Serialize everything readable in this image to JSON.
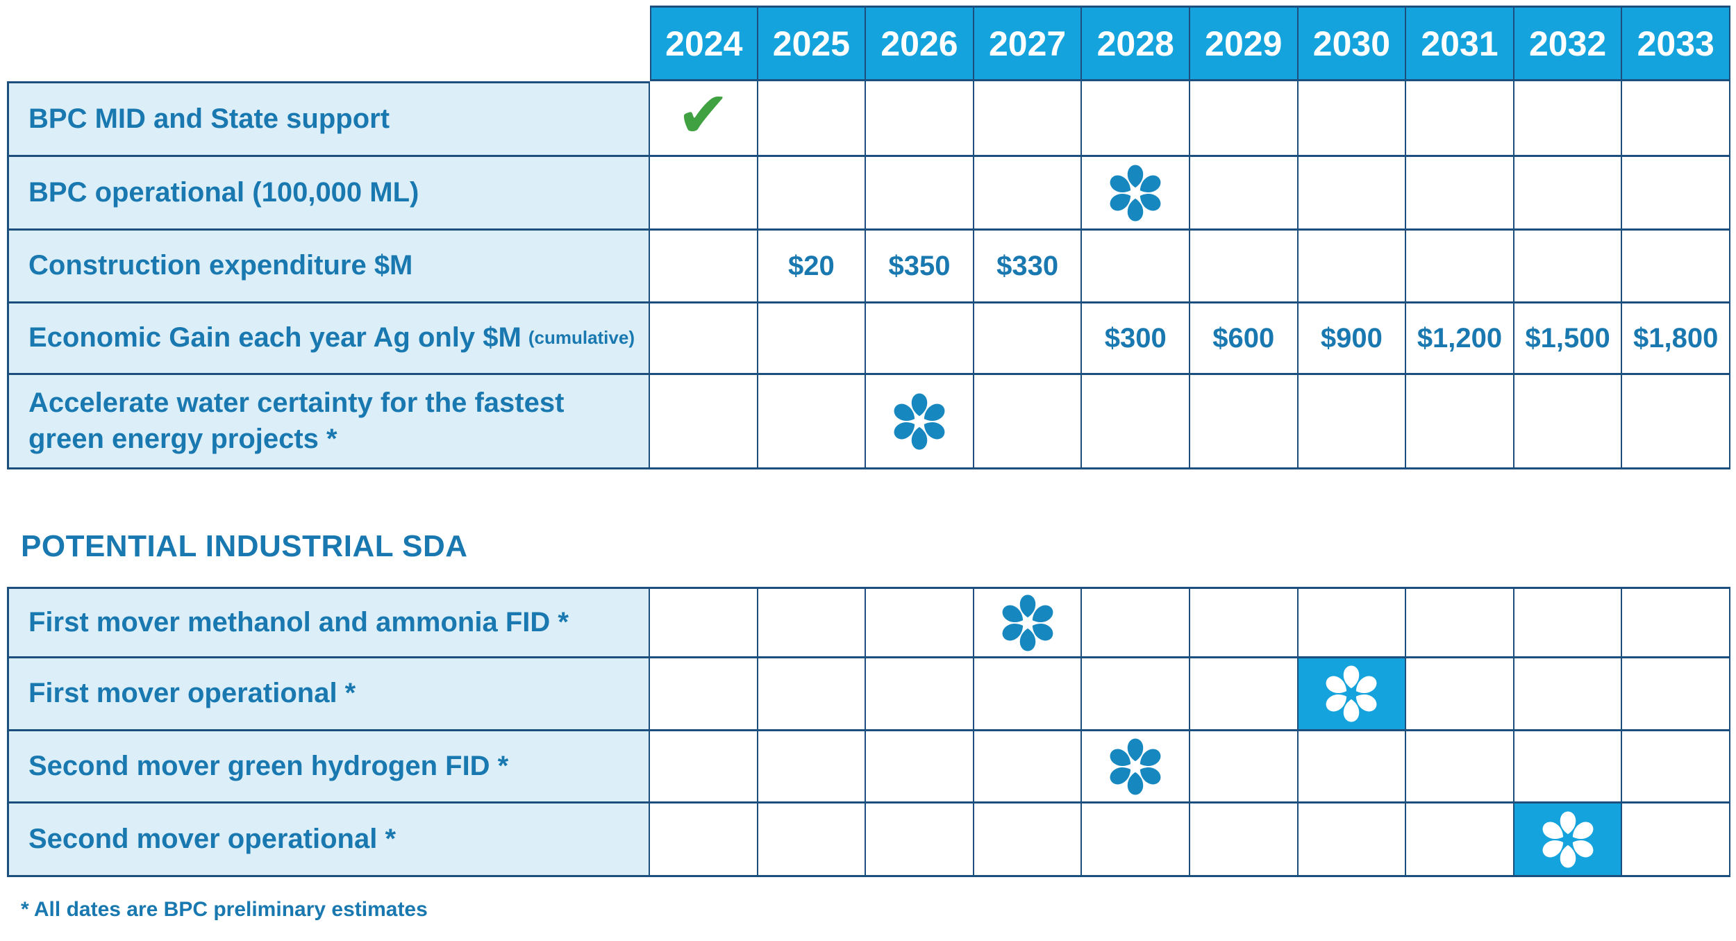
{
  "years": [
    "2024",
    "2025",
    "2026",
    "2027",
    "2028",
    "2029",
    "2030",
    "2031",
    "2032",
    "2033"
  ],
  "colors": {
    "header_blue": "#14a3dc",
    "flower_blue": "#1787bf",
    "label_background": "#dceff9",
    "text_blue": "#1878af",
    "grid_line": "#1c4f7e",
    "check_green": "#3fa141",
    "highlight_cell_blue": "#14a3dc"
  },
  "icons": {
    "check_glyph": "✔",
    "check_name": "green-check-icon",
    "flower_name": "asterisk-flower-icon"
  },
  "upper_table": {
    "rows": [
      {
        "label": "BPC MID and State support",
        "cells": [
          {
            "year": "2024",
            "type": "check"
          }
        ]
      },
      {
        "label": "BPC operational (100,000 ML)",
        "cells": [
          {
            "year": "2028",
            "type": "flower"
          }
        ]
      },
      {
        "label": "Construction expenditure $M",
        "cells": [
          {
            "year": "2025",
            "type": "value",
            "text": "$20"
          },
          {
            "year": "2026",
            "type": "value",
            "text": "$350"
          },
          {
            "year": "2027",
            "type": "value",
            "text": "$330"
          }
        ]
      },
      {
        "label": "Economic Gain each year Ag only $M",
        "label_note": "(cumulative)",
        "cells": [
          {
            "year": "2028",
            "type": "value",
            "text": "$300"
          },
          {
            "year": "2029",
            "type": "value",
            "text": "$600"
          },
          {
            "year": "2030",
            "type": "value",
            "text": "$900"
          },
          {
            "year": "2031",
            "type": "value",
            "text": "$1,200"
          },
          {
            "year": "2032",
            "type": "value",
            "text": "$1,500"
          },
          {
            "year": "2033",
            "type": "value",
            "text": "$1,800"
          }
        ]
      },
      {
        "label": "Accelerate water certainty for the fastest green energy projects *",
        "cells": [
          {
            "year": "2026",
            "type": "flower"
          }
        ]
      }
    ]
  },
  "section_heading": "POTENTIAL INDUSTRIAL SDA",
  "lower_table": {
    "rows": [
      {
        "label": "First mover methanol and ammonia FID *",
        "cells": [
          {
            "year": "2027",
            "type": "flower"
          }
        ]
      },
      {
        "label": "First mover operational *",
        "cells": [
          {
            "year": "2030",
            "type": "flower-filled"
          }
        ]
      },
      {
        "label": "Second mover green hydrogen FID *",
        "cells": [
          {
            "year": "2028",
            "type": "flower"
          }
        ]
      },
      {
        "label": "Second mover operational *",
        "cells": [
          {
            "year": "2032",
            "type": "flower-filled"
          }
        ]
      }
    ]
  },
  "footnote": "* All dates are BPC preliminary estimates",
  "chart_data": {
    "type": "table",
    "columns": [
      "Milestone",
      "2024",
      "2025",
      "2026",
      "2027",
      "2028",
      "2029",
      "2030",
      "2031",
      "2032",
      "2033"
    ],
    "sections": [
      {
        "name": "",
        "rows": [
          {
            "label": "BPC MID and State support",
            "values": {
              "2024": "complete (green check)"
            }
          },
          {
            "label": "BPC operational (100,000 ML)",
            "values": {
              "2028": "milestone"
            }
          },
          {
            "label": "Construction expenditure $M",
            "units": "$M",
            "values": {
              "2025": 20,
              "2026": 350,
              "2027": 330
            }
          },
          {
            "label": "Economic Gain each year Ag only $M (cumulative)",
            "units": "$M",
            "values": {
              "2028": 300,
              "2029": 600,
              "2030": 900,
              "2031": 1200,
              "2032": 1500,
              "2033": 1800
            }
          },
          {
            "label": "Accelerate water certainty for the fastest green energy projects *",
            "values": {
              "2026": "milestone"
            }
          }
        ]
      },
      {
        "name": "POTENTIAL INDUSTRIAL SDA",
        "rows": [
          {
            "label": "First mover methanol and ammonia FID *",
            "values": {
              "2027": "milestone"
            }
          },
          {
            "label": "First mover operational *",
            "values": {
              "2030": "milestone (highlighted blue cell)"
            }
          },
          {
            "label": "Second mover green hydrogen FID *",
            "values": {
              "2028": "milestone"
            }
          },
          {
            "label": "Second mover operational *",
            "values": {
              "2032": "milestone (highlighted blue cell)"
            }
          }
        ]
      }
    ],
    "footnote": "* All dates are BPC preliminary estimates"
  }
}
